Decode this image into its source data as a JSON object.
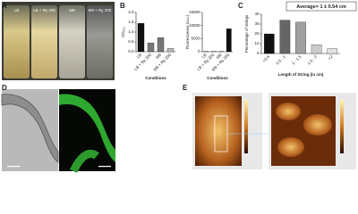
{
  "panel_labels": [
    "A",
    "B",
    "C",
    "D",
    "E"
  ],
  "photo_labels": [
    "LB",
    "LB + Ry 200",
    "M9",
    "M9 + Ry 200"
  ],
  "chart_data": [
    {
      "type": "bar",
      "ylabel": "OD₆₀₀",
      "xlabel": "Conditions",
      "categories": [
        "LB",
        "LB + Ry 200",
        "M9",
        "M9 + Ry 200"
      ],
      "values": [
        1.45,
        0.45,
        0.72,
        0.17
      ],
      "colors": [
        "#111111",
        "#777777",
        "#777777",
        "#bbbbbb"
      ],
      "ylim": [
        0,
        2
      ],
      "yticks": [
        {
          "value": 0,
          "label": "0.0"
        },
        {
          "value": 0.5,
          "label": "0.5"
        },
        {
          "value": 1,
          "label": "1.0"
        },
        {
          "value": 1.5,
          "label": "1.5"
        },
        {
          "value": 2,
          "label": "2.0"
        }
      ]
    },
    {
      "type": "bar",
      "ylabel": "Fluorescence (a.u.)",
      "xlabel": "Conditions",
      "categories": [
        "LB",
        "LB + Ry 200",
        "M9",
        "M9 + Ry 200"
      ],
      "values": [
        100,
        100,
        100,
        8800
      ],
      "colors": [
        "#111111",
        "#111111",
        "#111111",
        "#111111"
      ],
      "ylim": [
        0,
        15000
      ],
      "yticks": [
        0,
        5000,
        10000,
        15000
      ]
    },
    {
      "type": "bar",
      "annotation": "Average= 1 ± 0.54 cm",
      "ylabel": "Percentage of strings",
      "xlabel": "Length of String (in cm)",
      "categories": [
        "<0.5",
        "0.5 - 1",
        "1 - 1.5",
        "1.5 - 2",
        ">2"
      ],
      "values": [
        20,
        34,
        32,
        9,
        5
      ],
      "colors": [
        "#111111",
        "#666666",
        "#a0a0a0",
        "#cccccc",
        "#e4e4e4"
      ],
      "ylim": [
        0,
        40
      ],
      "yticks": [
        0,
        10,
        20,
        30,
        40
      ]
    }
  ]
}
